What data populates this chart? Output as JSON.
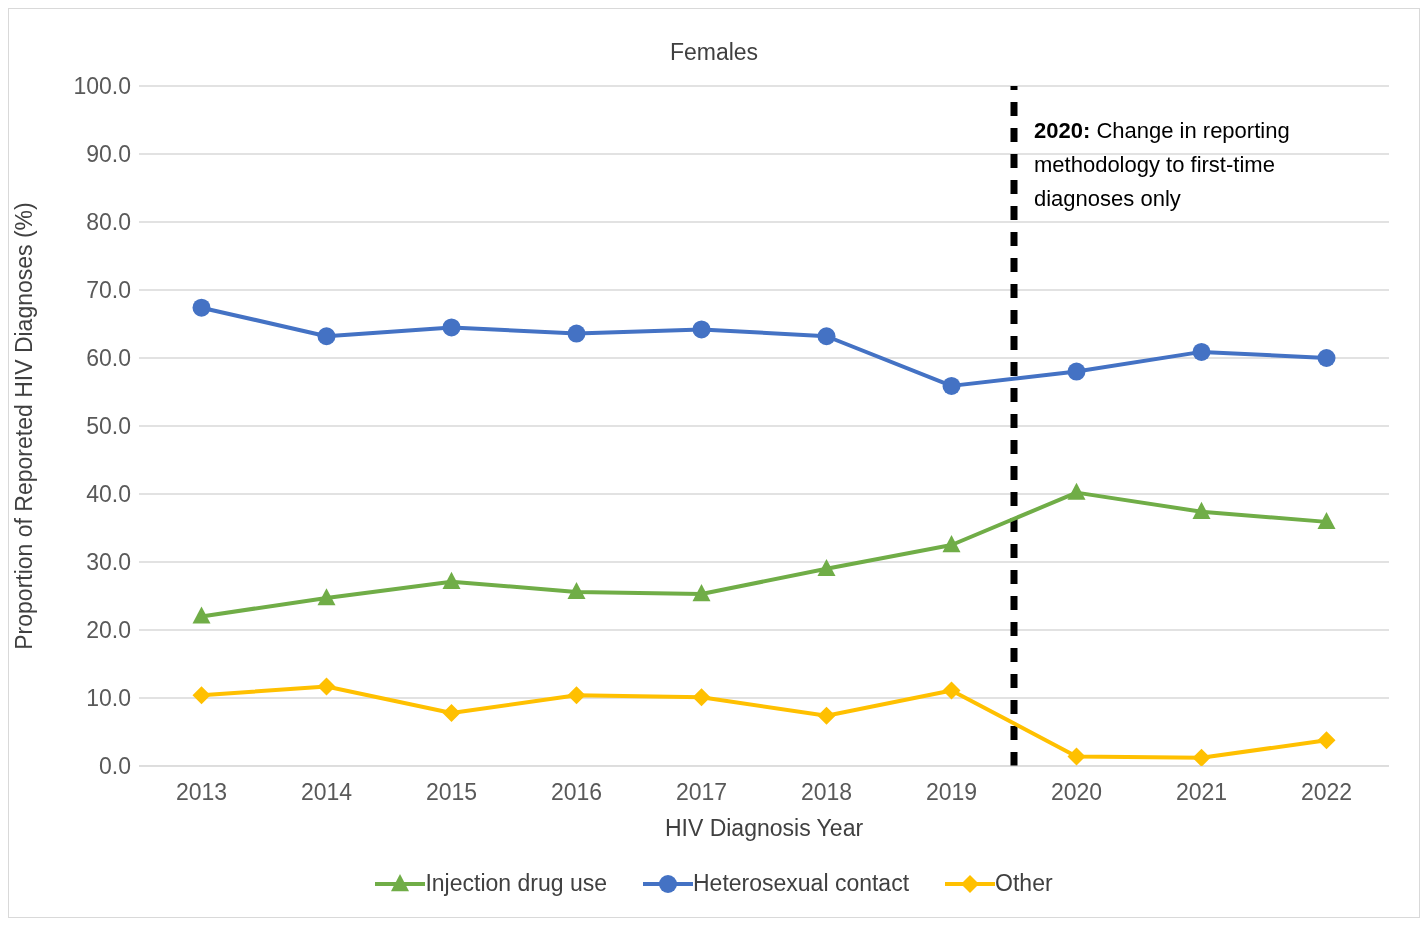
{
  "chart_data": {
    "type": "line",
    "title": "Females",
    "xlabel": "HIV Diagnosis Year",
    "ylabel": "Proportion of Reporeted HIV Diagnoses (%)",
    "x": [
      2013,
      2014,
      2015,
      2016,
      2017,
      2018,
      2019,
      2020,
      2021,
      2022
    ],
    "series": [
      {
        "name": "Injection drug use",
        "color": "#70ad47",
        "marker": "triangle",
        "values": [
          22.0,
          24.7,
          27.1,
          25.6,
          25.3,
          29.0,
          32.5,
          40.2,
          37.4,
          35.9
        ]
      },
      {
        "name": "Heterosexual contact",
        "color": "#4472c4",
        "marker": "circle",
        "values": [
          67.4,
          63.2,
          64.5,
          63.6,
          64.2,
          63.2,
          55.9,
          58.0,
          60.9,
          60.0
        ]
      },
      {
        "name": "Other",
        "color": "#ffc000",
        "marker": "diamond",
        "values": [
          10.4,
          11.7,
          7.8,
          10.4,
          10.1,
          7.4,
          11.1,
          1.4,
          1.2,
          3.8
        ]
      }
    ],
    "xlim": [
      2012.5,
      2022.5
    ],
    "xticks": [
      2013,
      2014,
      2015,
      2016,
      2017,
      2018,
      2019,
      2020,
      2021,
      2022
    ],
    "ylim": [
      0,
      100
    ],
    "yticks": [
      {
        "value": 0,
        "label": "0.0"
      },
      {
        "value": 10,
        "label": "10.0"
      },
      {
        "value": 20,
        "label": "20.0"
      },
      {
        "value": 30,
        "label": "30.0"
      },
      {
        "value": 40,
        "label": "40.0"
      },
      {
        "value": 50,
        "label": "50.0"
      },
      {
        "value": 60,
        "label": "60.0"
      },
      {
        "value": 70,
        "label": "70.0"
      },
      {
        "value": 80,
        "label": "80.0"
      },
      {
        "value": 90,
        "label": "90.0"
      },
      {
        "value": 100,
        "label": "100.0"
      }
    ],
    "ref_lines": [
      {
        "axis": "x",
        "value": 2019.5,
        "label": "2020: Change in reporting methodology  to first-time diagnoses only",
        "color": "#000000",
        "line_style": "dashed"
      }
    ],
    "grid": "y",
    "legend": "bottom",
    "line_style": "solid"
  }
}
